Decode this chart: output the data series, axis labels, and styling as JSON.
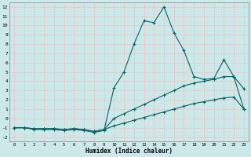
{
  "xlabel": "Humidex (Indice chaleur)",
  "background_color": "#cce8e8",
  "grid_color": "#e8c8c8",
  "line_color": "#006666",
  "xlim": [
    -0.5,
    23.5
  ],
  "ylim": [
    -2.5,
    12.5
  ],
  "xticks": [
    0,
    1,
    2,
    3,
    4,
    5,
    6,
    7,
    8,
    9,
    10,
    11,
    12,
    13,
    14,
    15,
    16,
    17,
    18,
    19,
    20,
    21,
    22,
    23
  ],
  "yticks": [
    -2,
    -1,
    0,
    1,
    2,
    3,
    4,
    5,
    6,
    7,
    8,
    9,
    10,
    11,
    12
  ],
  "x_vals": [
    0,
    1,
    2,
    3,
    4,
    5,
    6,
    7,
    8,
    9,
    10,
    11,
    12,
    13,
    14,
    15,
    16,
    17,
    18,
    19,
    20,
    21,
    22,
    23
  ],
  "line1": [
    -1,
    -1,
    -1.2,
    -1.2,
    -1.2,
    -1.3,
    -1.2,
    -1.3,
    -1.5,
    -1.3,
    3.3,
    5.0,
    8.0,
    10.5,
    10.3,
    12.0,
    9.2,
    7.3,
    4.5,
    4.2,
    4.3,
    6.3,
    4.5,
    3.2
  ],
  "line2": [
    -1,
    -1,
    -1.1,
    -1.1,
    -1.1,
    -1.2,
    -1.1,
    -1.2,
    -1.4,
    -1.2,
    0.0,
    0.5,
    1.0,
    1.5,
    2.0,
    2.5,
    3.0,
    3.5,
    3.8,
    4.0,
    4.2,
    4.5,
    4.5,
    1.0
  ],
  "line3": [
    -1,
    -1,
    -1.1,
    -1.1,
    -1.1,
    -1.2,
    -1.1,
    -1.2,
    -1.4,
    -1.2,
    -0.8,
    -0.5,
    -0.2,
    0.1,
    0.4,
    0.7,
    1.0,
    1.3,
    1.6,
    1.8,
    2.0,
    2.2,
    2.3,
    1.0
  ]
}
